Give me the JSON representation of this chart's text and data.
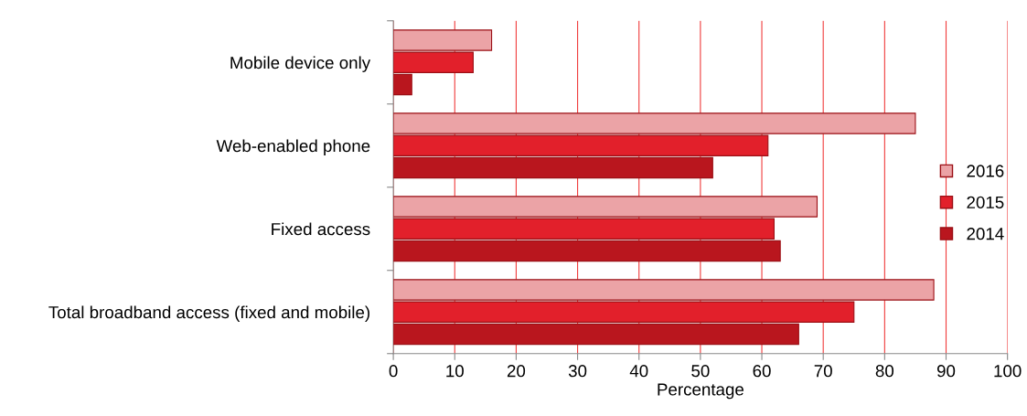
{
  "chart_data": {
    "type": "bar",
    "orientation": "horizontal",
    "xlabel": "Percentage",
    "categories": [
      "Mobile device only",
      "Web-enabled phone",
      "Fixed access",
      "Total broadband access (fixed and mobile)"
    ],
    "series": [
      {
        "name": "2016",
        "color": "#eba3a6",
        "values": [
          16,
          85,
          69,
          88
        ]
      },
      {
        "name": "2015",
        "color": "#e2202b",
        "values": [
          13,
          61,
          62,
          75
        ]
      },
      {
        "name": "2014",
        "color": "#b9161e",
        "values": [
          3,
          52,
          63,
          66
        ]
      }
    ],
    "xlim": [
      0,
      100
    ],
    "xticks": [
      0,
      10,
      20,
      30,
      40,
      50,
      60,
      70,
      80,
      90,
      100
    ],
    "grid": "x",
    "legend": "right"
  }
}
